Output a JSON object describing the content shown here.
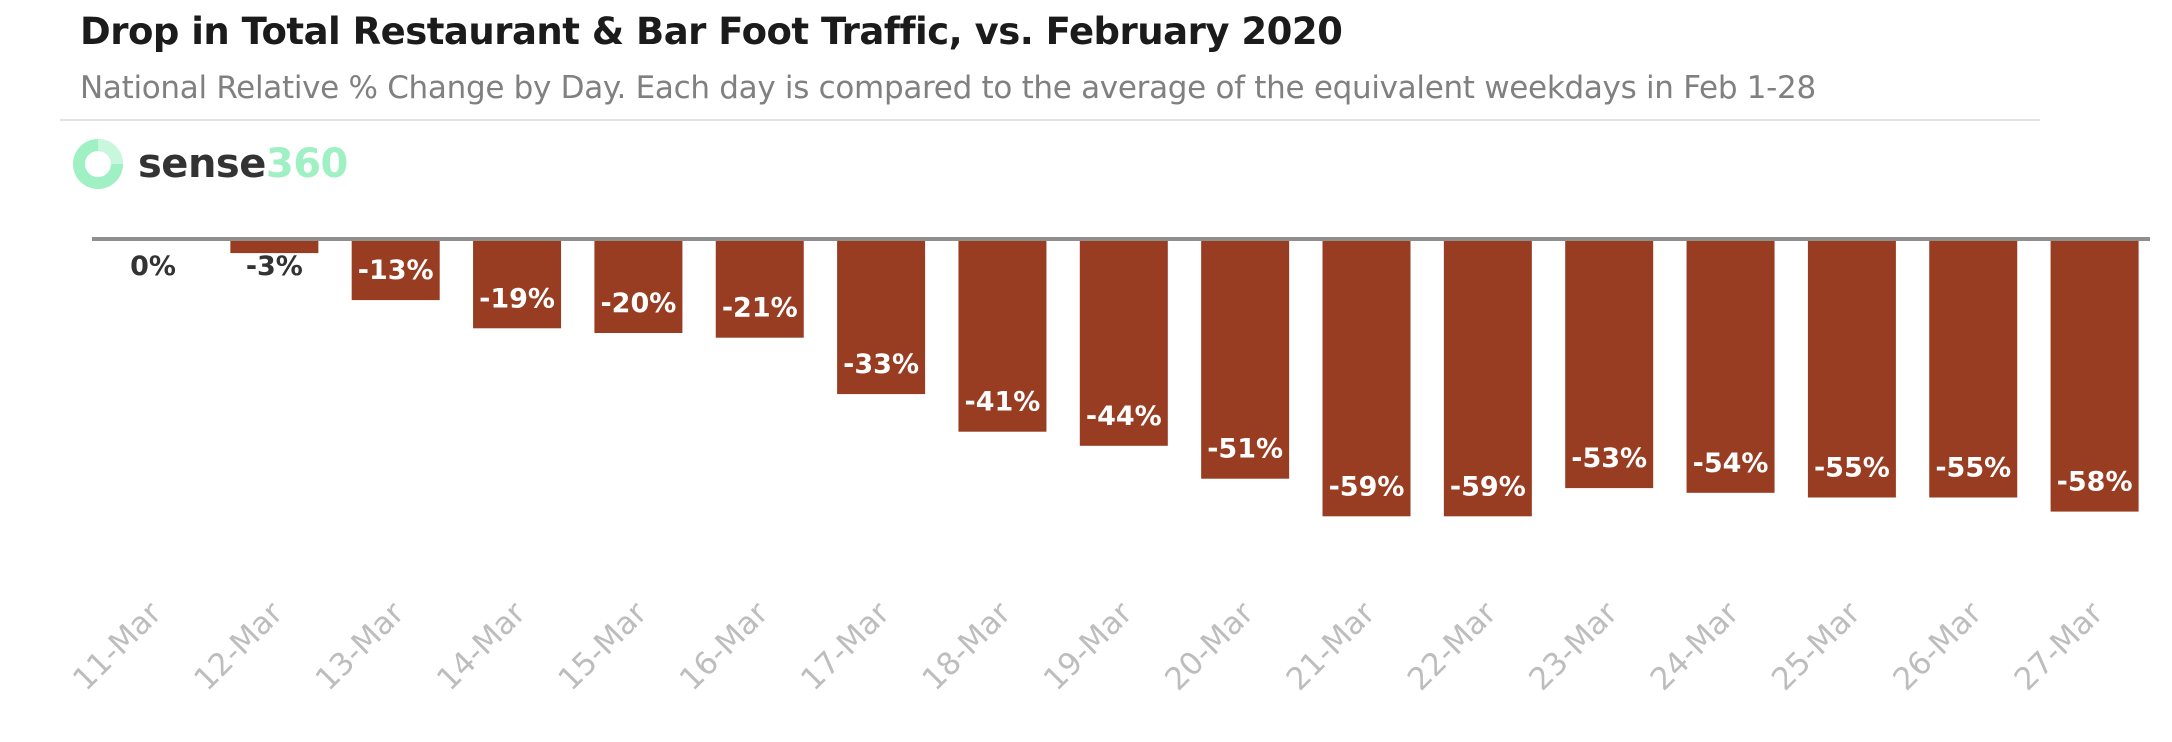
{
  "colors": {
    "bar": "#983c22",
    "baseline": "#8f8f8f",
    "inside_label": "#ffffff",
    "outside_label": "#333333",
    "tick": "#bdbdbd",
    "logo_accent": "#9ff0c3"
  },
  "header": {
    "title": "Drop in Total Restaurant & Bar Foot Traffic, vs. February 2020",
    "subtitle": "National Relative % Change by Day.  Each day is compared to the average of the equivalent weekdays in Feb 1-28"
  },
  "logo": {
    "part1": "sense",
    "part2": "360",
    "icon": "sense360-ring-icon"
  },
  "chart_data": {
    "type": "bar",
    "title": "Drop in Total Restaurant & Bar Foot Traffic, vs. February 2020",
    "subtitle": "National Relative % Change by Day.  Each day is compared to the average of the equivalent weekdays in Feb 1-28",
    "categories": [
      "11-Mar",
      "12-Mar",
      "13-Mar",
      "14-Mar",
      "15-Mar",
      "16-Mar",
      "17-Mar",
      "18-Mar",
      "19-Mar",
      "20-Mar",
      "21-Mar",
      "22-Mar",
      "23-Mar",
      "24-Mar",
      "25-Mar",
      "26-Mar",
      "27-Mar"
    ],
    "values": [
      0,
      -3,
      -13,
      -19,
      -20,
      -21,
      -33,
      -41,
      -44,
      -51,
      -59,
      -59,
      -53,
      -54,
      -55,
      -55,
      -58
    ],
    "data_labels": [
      "0%",
      "-3%",
      "-13%",
      "-19%",
      "-20%",
      "-21%",
      "-33%",
      "-41%",
      "-44%",
      "-51%",
      "-59%",
      "-59%",
      "-53%",
      "-54%",
      "-55%",
      "-55%",
      "-58%"
    ],
    "xlabel": "",
    "ylabel": "",
    "ylim": [
      -60,
      0
    ],
    "grid": false,
    "legend": "none"
  }
}
